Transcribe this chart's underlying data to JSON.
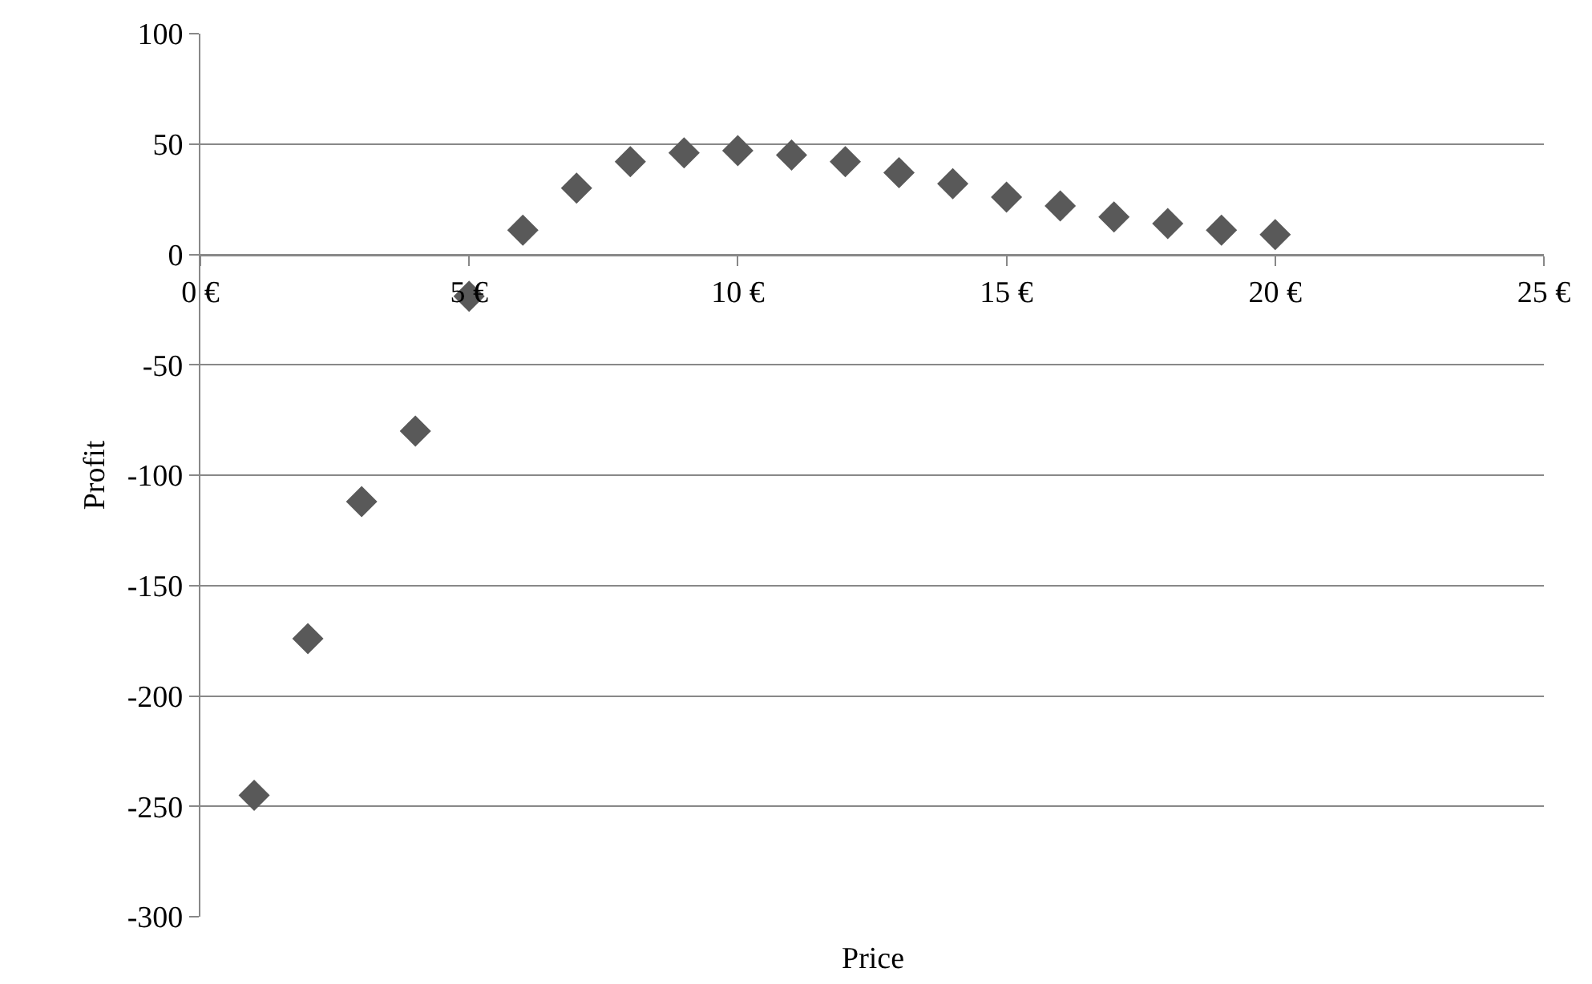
{
  "chart_data": {
    "type": "scatter",
    "xlabel": "Price",
    "ylabel": "Profit",
    "x": [
      1,
      2,
      3,
      4,
      5,
      6,
      7,
      8,
      9,
      10,
      11,
      12,
      13,
      14,
      15,
      16,
      17,
      18,
      19,
      20
    ],
    "series": [
      {
        "color": "#595959",
        "values": [
          -245,
          -174,
          -112,
          -80,
          -19,
          11,
          30,
          42,
          46,
          47,
          45,
          42,
          37,
          32,
          26,
          22,
          17,
          14,
          11,
          9
        ]
      }
    ],
    "xlim": [
      0,
      25
    ],
    "xticks": [
      {
        "value": 0,
        "label": "0 €"
      },
      {
        "value": 5,
        "label": "5 €"
      },
      {
        "value": 10,
        "label": "10 €"
      },
      {
        "value": 15,
        "label": "15 €"
      },
      {
        "value": 20,
        "label": "20 €"
      },
      {
        "value": 25,
        "label": "25 €"
      }
    ],
    "ylim": [
      -300,
      100
    ],
    "yticks": [
      -300,
      -250,
      -200,
      -150,
      -100,
      -50,
      0,
      50,
      100
    ],
    "grid": "y",
    "marker": "diamond"
  }
}
